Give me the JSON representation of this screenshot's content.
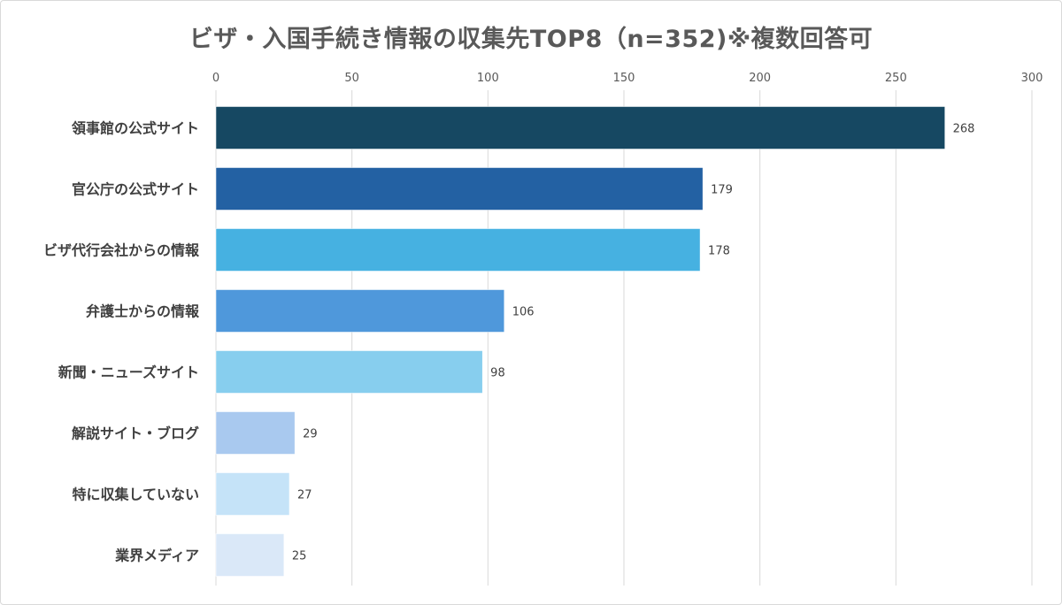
{
  "chart_data": {
    "type": "bar",
    "orientation": "horizontal",
    "title": "ビザ・入国手続き情報の収集先TOP8（n=352)※複数回答可",
    "categories": [
      "領事館の公式サイト",
      "官公庁の公式サイト",
      "ビザ代行会社からの情報",
      "弁護士からの情報",
      "新聞・ニューズサイト",
      "解説サイト・ブログ",
      "特に収集していない",
      "業界メディア"
    ],
    "values": [
      268,
      179,
      178,
      106,
      98,
      29,
      27,
      25
    ],
    "colors": [
      "#164862",
      "#2361a3",
      "#46b1e1",
      "#4f98db",
      "#87ceee",
      "#a9c9ef",
      "#c5e3f8",
      "#dae8f8"
    ],
    "xlim": [
      0,
      300
    ],
    "xticks": [
      0,
      50,
      100,
      150,
      200,
      250,
      300
    ],
    "xaxis_position": "top",
    "grid": true,
    "legend": "none"
  }
}
